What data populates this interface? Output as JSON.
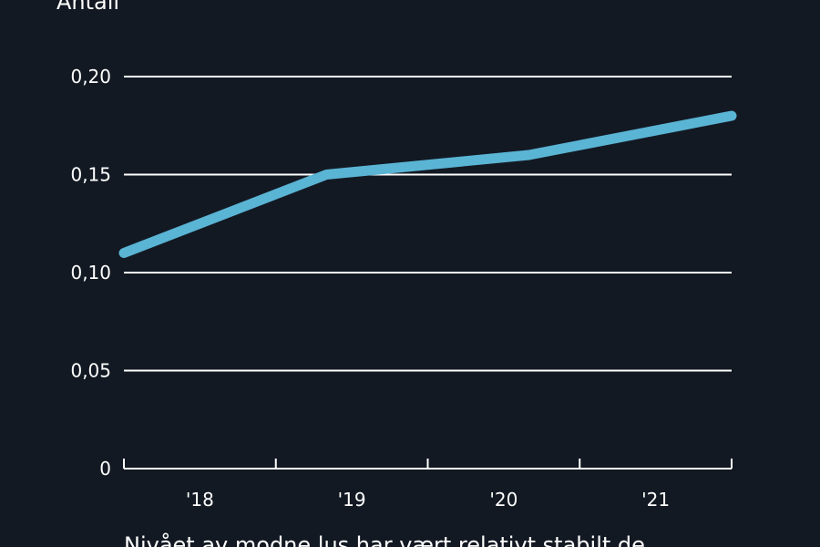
{
  "chart_data": {
    "type": "line",
    "title": "Antall",
    "caption": "Nivået av modne lus har vært relativt stabilt de",
    "categories": [
      "'18",
      "'19",
      "'20",
      "'21"
    ],
    "values": [
      0.11,
      0.15,
      0.16,
      0.18
    ],
    "color": "#5ab4d4",
    "ylim": [
      0,
      0.2
    ],
    "yticks": [
      0,
      {
        "value": 0.05,
        "label": "0,05"
      },
      {
        "value": 0.1,
        "label": "0,10"
      },
      {
        "value": 0.15,
        "label": "0,15"
      },
      {
        "value": 0.2,
        "label": "0,20"
      }
    ],
    "grid": true
  }
}
